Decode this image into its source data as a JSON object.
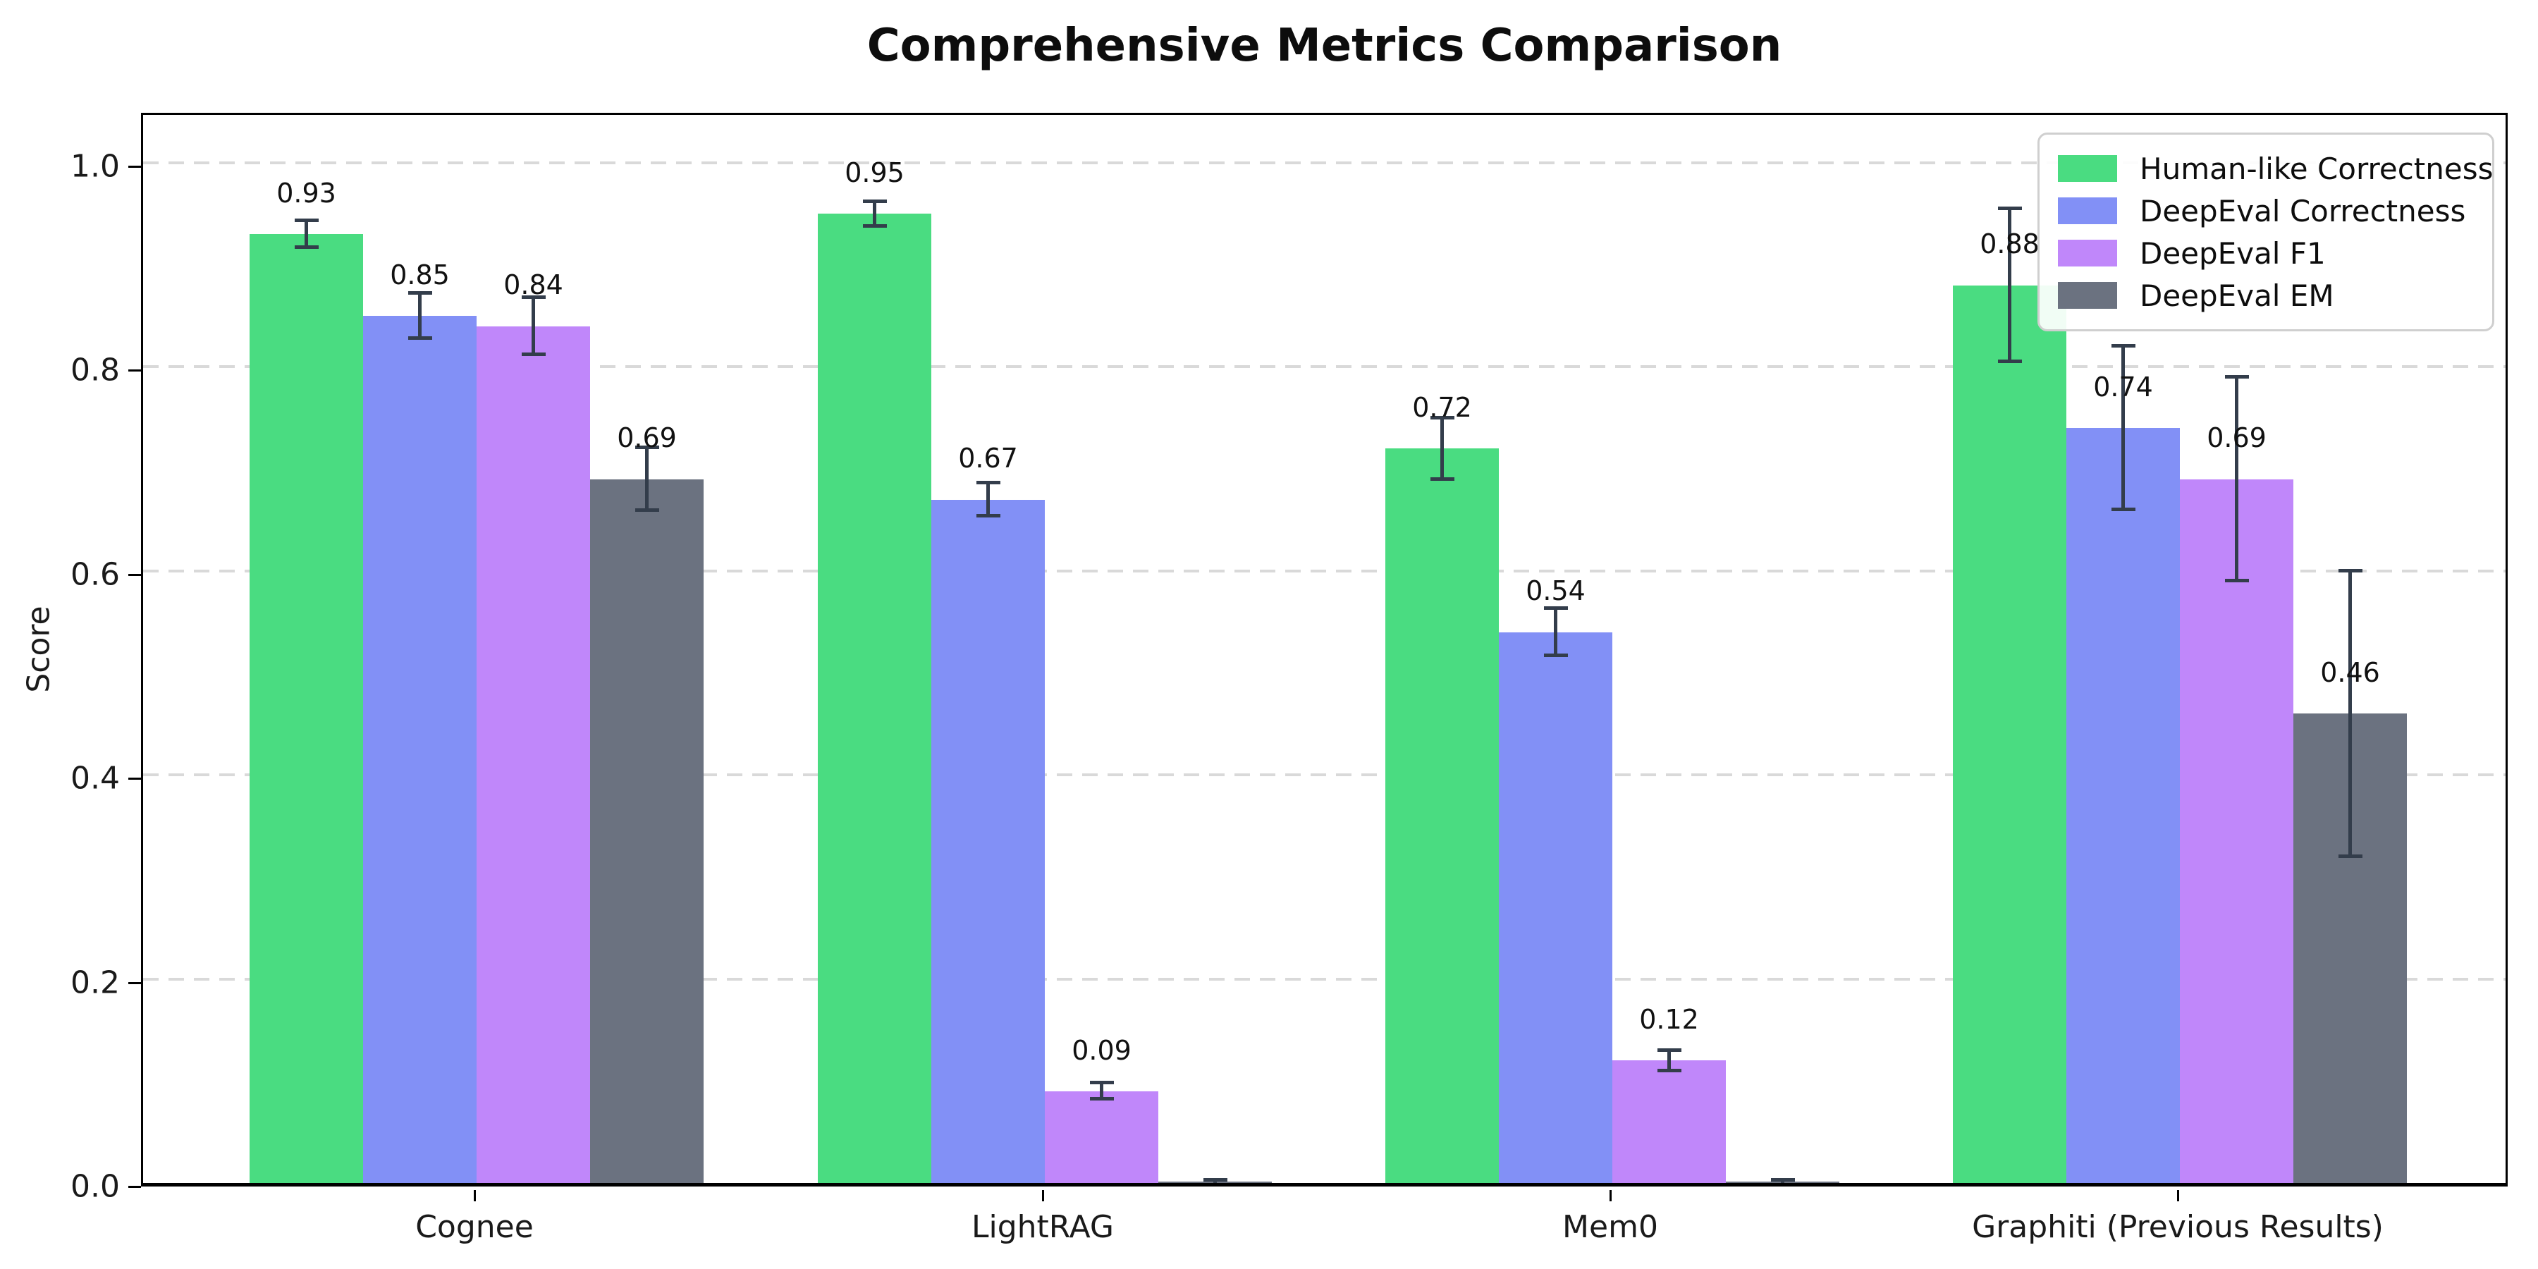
{
  "title": "Comprehensive Metrics Comparison",
  "ylabel": "Score",
  "chart_data": {
    "type": "bar",
    "title": "Comprehensive Metrics Comparison",
    "xlabel": "",
    "ylabel": "Score",
    "categories": [
      "Cognee",
      "LightRAG",
      "Mem0",
      "Graphiti (Previous Results)"
    ],
    "series": [
      {
        "name": "Human-like Correctness",
        "color": "#4adc81",
        "values": [
          0.93,
          0.95,
          0.72,
          0.88
        ],
        "errors": [
          0.013,
          0.012,
          0.03,
          0.075
        ],
        "labels": [
          "0.93",
          "0.95",
          "0.72",
          "0.88"
        ]
      },
      {
        "name": "DeepEval Correctness",
        "color": "#8290f6",
        "values": [
          0.85,
          0.67,
          0.54,
          0.74
        ],
        "errors": [
          0.022,
          0.016,
          0.023,
          0.08
        ],
        "labels": [
          "0.85",
          "0.67",
          "0.54",
          "0.74"
        ]
      },
      {
        "name": "DeepEval F1",
        "color": "#c087fa",
        "values": [
          0.84,
          0.09,
          0.12,
          0.69
        ],
        "errors": [
          0.028,
          0.008,
          0.01,
          0.1
        ],
        "labels": [
          "0.84",
          "0.09",
          "0.12",
          "0.69"
        ]
      },
      {
        "name": "DeepEval EM",
        "color": "#6b7280",
        "values": [
          0.69,
          0.0,
          0.0,
          0.46
        ],
        "errors": [
          0.031,
          0.003,
          0.003,
          0.14
        ],
        "labels": [
          "0.69",
          "",
          "",
          "0.46"
        ]
      }
    ],
    "yticks": [
      "0.0",
      "0.2",
      "0.4",
      "0.6",
      "0.8",
      "1.0"
    ],
    "ylim": [
      0,
      1.05
    ],
    "grid": "horizontal dashed at 0.2 steps",
    "grid_color": "#d9d9d9",
    "error_color": "#333d4b",
    "legend_position": "upper right"
  }
}
